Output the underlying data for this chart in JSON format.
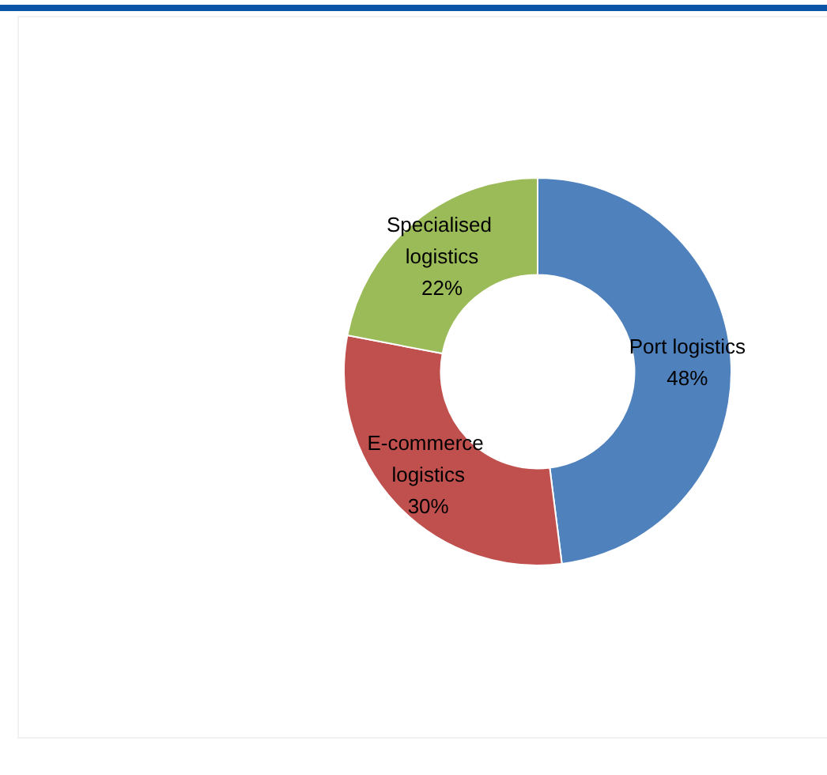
{
  "chart_data": {
    "type": "donut",
    "categories": [
      "Port logistics",
      "E-commerce logistics",
      "Specialised logistics"
    ],
    "values": [
      48,
      30,
      22
    ],
    "value_labels": [
      "48%",
      "30%",
      "22%"
    ],
    "colors": [
      "#4f81bd",
      "#c0504d",
      "#9bbb59"
    ],
    "legend": false
  }
}
